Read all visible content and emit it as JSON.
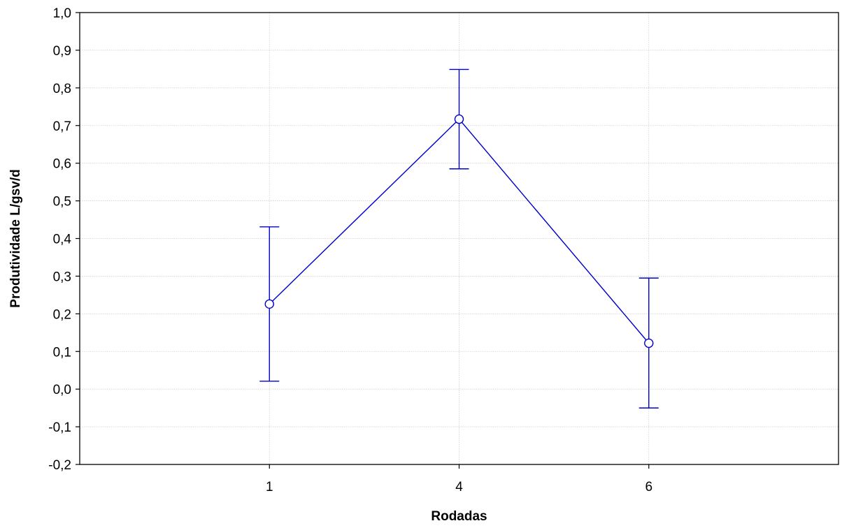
{
  "chart_data": {
    "type": "line",
    "title": "",
    "xlabel": "Rodadas",
    "ylabel": "Produtividade L/gsv/d",
    "categories": [
      "1",
      "4",
      "6"
    ],
    "series": [
      {
        "values": [
          0.226,
          0.717,
          0.122
        ],
        "error_low": [
          0.021,
          0.585,
          -0.05
        ],
        "error_high": [
          0.431,
          0.849,
          0.295
        ],
        "color": "#0000cc",
        "marker": "open-circle"
      }
    ],
    "ylim": [
      -0.2,
      1.0
    ],
    "yticks": [
      -0.2,
      -0.1,
      0.0,
      0.1,
      0.2,
      0.3,
      0.4,
      0.5,
      0.6,
      0.7,
      0.8,
      0.9,
      1.0
    ],
    "ytick_labels": [
      "-0,2",
      "-0,1",
      "0,0",
      "0,1",
      "0,2",
      "0,3",
      "0,4",
      "0,5",
      "0,6",
      "0,7",
      "0,8",
      "0,9",
      "1,0"
    ],
    "grid": true,
    "legend": false
  }
}
